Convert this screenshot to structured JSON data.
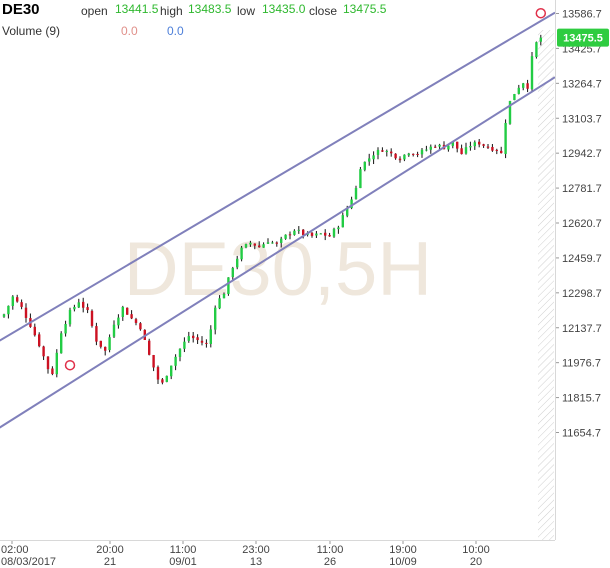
{
  "header": {
    "symbol": "DE30",
    "open_label": "open",
    "open_value": "13441.5",
    "high_label": "high",
    "high_value": "13483.5",
    "low_label": "low",
    "low_value": "13435.0",
    "close_label": "close",
    "close_value": "13475.5",
    "volume_label": "Volume (9)",
    "volume_value_1": "0.0",
    "volume_value_2": "0.0"
  },
  "watermark": "DE30,5H",
  "colors": {
    "up": "#22cc44",
    "down": "#cc1122",
    "channel": "#8080bb",
    "last_price_bg": "#2ecc40",
    "marker": "#e0304a"
  },
  "chart_data": {
    "type": "candlestick",
    "ylim": [
      11580,
      13640
    ],
    "y_ticks": [
      "13586.7",
      "13425.7",
      "13264.7",
      "13103.7",
      "12942.7",
      "12781.7",
      "12620.7",
      "12459.7",
      "12298.7",
      "12137.7",
      "11976.7",
      "11815.7",
      "11654.7"
    ],
    "x_ticks": [
      {
        "time": "02:00",
        "date": "08/03/2017"
      },
      {
        "time": "20:00",
        "date": "21"
      },
      {
        "time": "11:00",
        "date": "09/01"
      },
      {
        "time": "23:00",
        "date": "13"
      },
      {
        "time": "11:00",
        "date": "26"
      },
      {
        "time": "19:00",
        "date": "10/09"
      },
      {
        "time": "10:00",
        "date": "20"
      }
    ],
    "last_price": "13475.5",
    "channel": {
      "upper": [
        [
          0,
          12090
        ],
        [
          125,
          13588
        ]
      ],
      "lower": [
        [
          0,
          11690
        ],
        [
          125,
          13290
        ]
      ]
    },
    "anchor_points": [
      [
        15,
        11965
      ],
      [
        122,
        13588
      ]
    ],
    "close_path": [
      [
        0,
        12200
      ],
      [
        2,
        12280
      ],
      [
        4,
        12230
      ],
      [
        6,
        12150
      ],
      [
        8,
        12060
      ],
      [
        10,
        11950
      ],
      [
        11,
        11930
      ],
      [
        12,
        12020
      ],
      [
        13,
        12120
      ],
      [
        15,
        12210
      ],
      [
        17,
        12260
      ],
      [
        19,
        12210
      ],
      [
        21,
        12080
      ],
      [
        23,
        12030
      ],
      [
        25,
        12160
      ],
      [
        27,
        12230
      ],
      [
        29,
        12180
      ],
      [
        31,
        12140
      ],
      [
        33,
        12010
      ],
      [
        35,
        11900
      ],
      [
        36,
        11880
      ],
      [
        38,
        11970
      ],
      [
        40,
        12040
      ],
      [
        42,
        12100
      ],
      [
        44,
        12080
      ],
      [
        46,
        12060
      ],
      [
        47,
        12130
      ],
      [
        48,
        12240
      ],
      [
        50,
        12300
      ],
      [
        52,
        12420
      ],
      [
        54,
        12500
      ],
      [
        56,
        12530
      ],
      [
        58,
        12510
      ],
      [
        60,
        12540
      ],
      [
        62,
        12520
      ],
      [
        64,
        12560
      ],
      [
        66,
        12590
      ],
      [
        68,
        12570
      ],
      [
        70,
        12560
      ],
      [
        72,
        12570
      ],
      [
        74,
        12560
      ],
      [
        76,
        12610
      ],
      [
        78,
        12690
      ],
      [
        80,
        12780
      ],
      [
        81,
        12880
      ],
      [
        82,
        12900
      ],
      [
        84,
        12940
      ],
      [
        86,
        12960
      ],
      [
        88,
        12940
      ],
      [
        90,
        12920
      ],
      [
        92,
        12950
      ],
      [
        94,
        12940
      ],
      [
        96,
        12960
      ],
      [
        98,
        12980
      ],
      [
        100,
        12970
      ],
      [
        102,
        12990
      ],
      [
        104,
        12940
      ],
      [
        106,
        12980
      ],
      [
        108,
        12990
      ],
      [
        110,
        12970
      ],
      [
        112,
        12960
      ],
      [
        113,
        12940
      ],
      [
        114,
        13090
      ],
      [
        115,
        13180
      ],
      [
        116,
        13220
      ],
      [
        117,
        13250
      ],
      [
        118,
        13270
      ],
      [
        119,
        13250
      ],
      [
        120,
        13380
      ],
      [
        121,
        13450
      ],
      [
        122,
        13475.5
      ]
    ]
  }
}
